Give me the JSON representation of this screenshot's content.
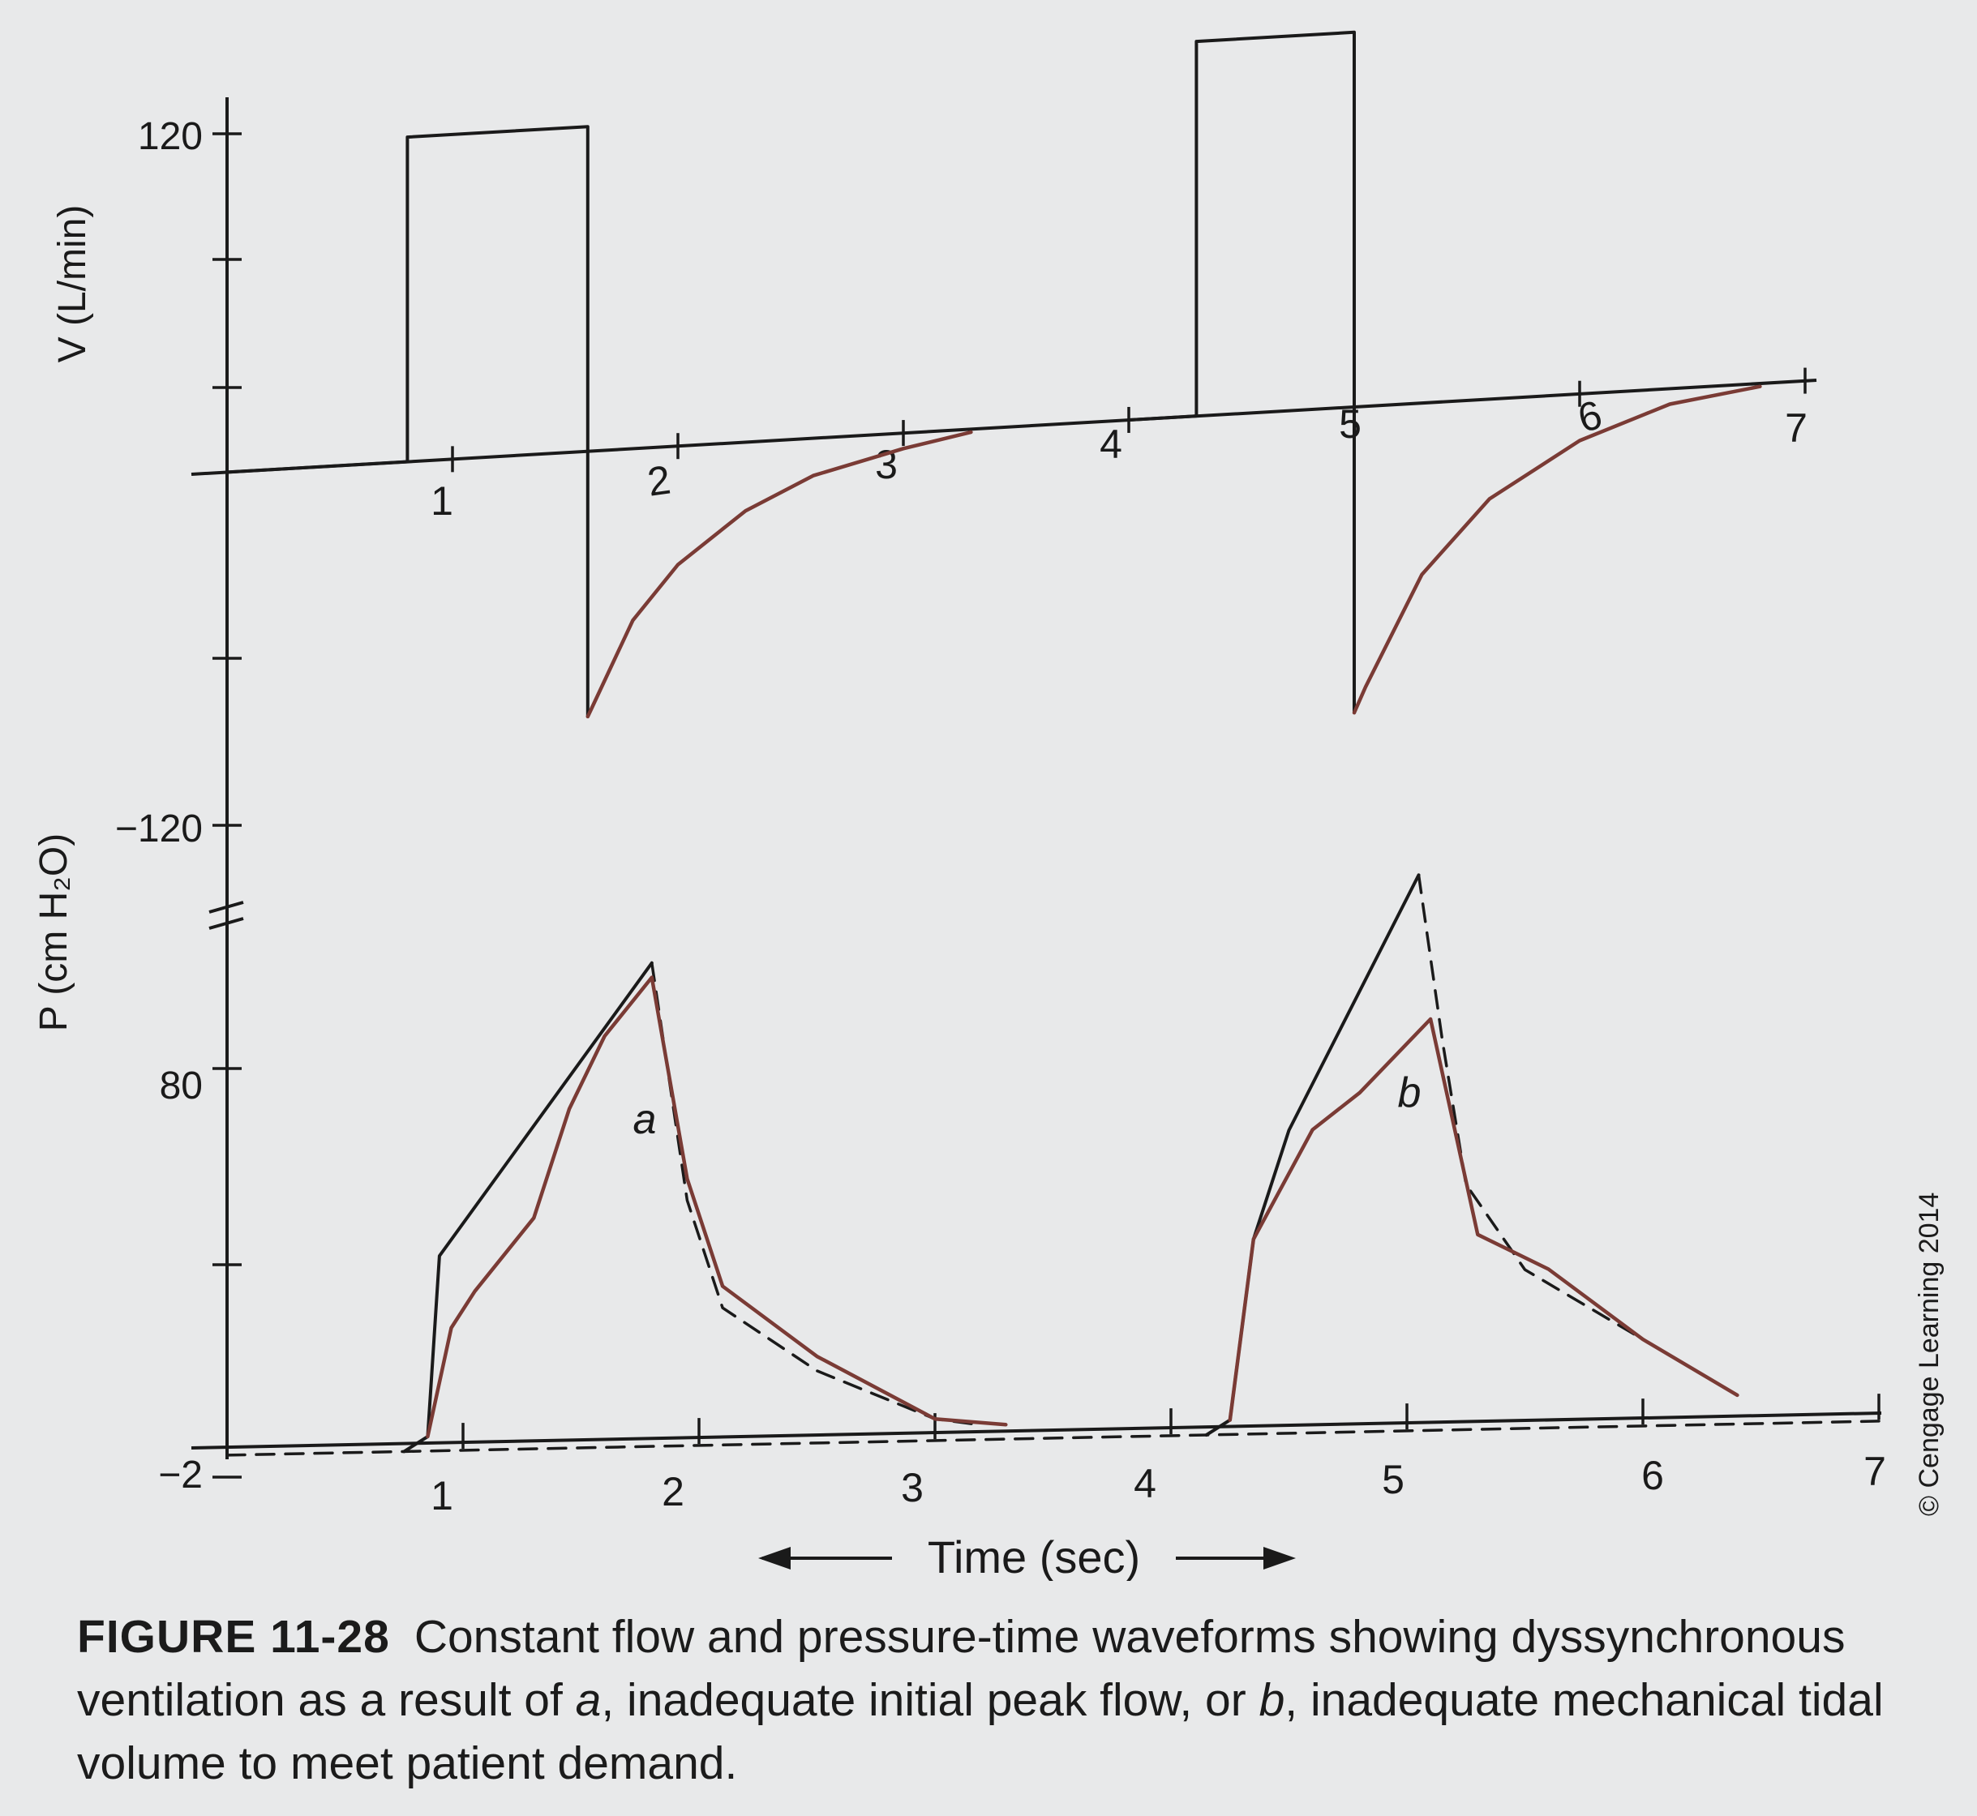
{
  "figure": {
    "label": "FIGURE 11-28",
    "caption_pre": "Constant flow and pressure-time waveforms showing dyssynchronous ventilation as a result of ",
    "caption_a": "a",
    "caption_mid": ", inadequate initial peak flow, or ",
    "caption_b": "b",
    "caption_post": ", inadequate mechanical tidal volume to meet patient demand.",
    "copyright": "© Cengage Learning 2014"
  },
  "chart_data": [
    {
      "type": "line",
      "panel": "flow",
      "ylabel": "V (L/min)",
      "y_tick_labels": [
        "120",
        "−120"
      ],
      "ylim": [
        -120,
        120
      ],
      "x_tick_labels": [
        "1",
        "2",
        "3",
        "4",
        "5",
        "6",
        "7"
      ],
      "xlim": [
        0,
        7
      ],
      "series": [
        {
          "style": "solid-black",
          "x": [
            0,
            0.8,
            0.8,
            1.6,
            1.6,
            2.0,
            2.5,
            3.0,
            3.5,
            4.0,
            4.3,
            4.3,
            5.0,
            5.0,
            5.3,
            5.8,
            6.3,
            6.8,
            7.0
          ],
          "y": [
            0,
            0,
            104,
            104,
            -85,
            -48,
            -22,
            -8,
            -2,
            0,
            0,
            120,
            120,
            -98,
            -55,
            -22,
            -7,
            -1,
            0
          ]
        },
        {
          "style": "brown",
          "x": [
            1.6,
            1.62,
            1.8,
            2.0,
            2.3,
            2.6,
            3.0,
            3.3,
            5.0,
            5.05,
            5.3,
            5.6,
            6.0,
            6.4,
            6.8
          ],
          "y": [
            -85,
            -82,
            -55,
            -38,
            -22,
            -12,
            -5,
            -1,
            -98,
            -90,
            -55,
            -32,
            -15,
            -5,
            -1
          ]
        }
      ]
    },
    {
      "type": "line",
      "panel": "pressure",
      "ylabel": "P (cm H₂O)",
      "y_tick_labels": [
        "80",
        "−2"
      ],
      "ylim": [
        -2,
        80
      ],
      "x_tick_labels": [
        "1",
        "2",
        "3",
        "4",
        "5",
        "6",
        "7"
      ],
      "xlim": [
        0,
        7
      ],
      "xlabel": "Time (sec)",
      "annotations": [
        "a",
        "b"
      ],
      "series": [
        {
          "style": "solid-black",
          "x": [
            0.75,
            0.85,
            0.9,
            1.8,
            4.15,
            4.25,
            4.35,
            4.5,
            5.05
          ],
          "y": [
            -2,
            0,
            25,
            65,
            -2,
            0,
            25,
            40,
            75
          ]
        },
        {
          "style": "dashed-black",
          "x": [
            0,
            1.0,
            4.5,
            7.0,
            1.8,
            1.95,
            2.1,
            2.5,
            3.0,
            3.2,
            5.05,
            5.15,
            5.25,
            5.5,
            6.0,
            6.4
          ],
          "y": [
            -2,
            -2,
            -2,
            -2,
            65,
            32,
            17,
            8,
            1,
            0,
            75,
            52,
            32,
            20,
            10,
            2
          ]
        },
        {
          "style": "brown",
          "x": [
            0.85,
            0.95,
            1.05,
            1.3,
            1.45,
            1.6,
            1.8,
            1.95,
            2.1,
            2.5,
            3.0,
            3.3,
            4.25,
            4.35,
            4.6,
            4.8,
            5.1,
            5.2,
            5.3,
            5.6,
            6.0,
            6.4
          ],
          "y": [
            0,
            15,
            20,
            30,
            45,
            55,
            63,
            35,
            20,
            10,
            1,
            0,
            0,
            25,
            40,
            45,
            55,
            40,
            25,
            20,
            10,
            2
          ]
        }
      ]
    }
  ]
}
